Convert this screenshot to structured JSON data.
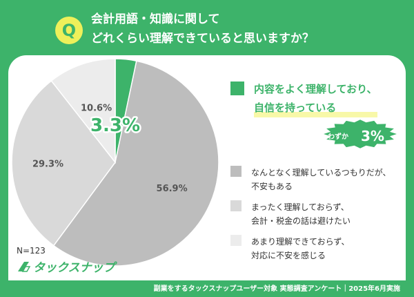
{
  "question": {
    "badge": "Q",
    "text": "会計用語・知識に関して\nどれくらい理解できていると思いますか？"
  },
  "chart_data": {
    "type": "pie",
    "slices": [
      {
        "label": "内容をよく理解しており、\n自信を持っている",
        "value": 3.3,
        "display": "3.3%",
        "color": "#3db36a"
      },
      {
        "label": "なんとなく理解しているつもりだが、\n不安もある",
        "value": 56.9,
        "display": "56.9%",
        "color": "#bdbdbd"
      },
      {
        "label": "まったく理解しておらず、\n会計・税金の話は避けたい",
        "value": 29.3,
        "display": "29.3%",
        "color": "#d9d9d9"
      },
      {
        "label": "あまり理解できておらず、\n対応に不安を感じる",
        "value": 10.6,
        "display": "10.6%",
        "color": "#ececec"
      }
    ],
    "start_angle": "12 o'clock",
    "direction": "clockwise",
    "legend_position": "right"
  },
  "callout": {
    "prefix": "わずか",
    "value": "3%",
    "color": "#3db36a"
  },
  "sample": "N=123",
  "logo": {
    "text": "タックスナップ"
  },
  "footer": "副業をするタックスナップユーザー対象 実態調査アンケート｜2025年6月実施"
}
